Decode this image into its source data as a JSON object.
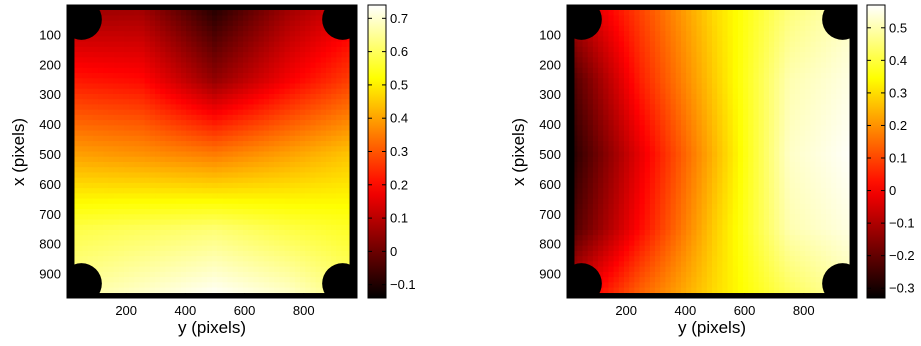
{
  "chart_data": [
    {
      "type": "heatmap",
      "title": "",
      "xlabel": "y (pixels)",
      "ylabel": "x (pixels)",
      "xticks": [
        200,
        400,
        600,
        800
      ],
      "yticks": [
        100,
        200,
        300,
        400,
        500,
        600,
        700,
        800,
        900
      ],
      "xlim": [
        0,
        980
      ],
      "ylim": [
        980,
        0
      ],
      "colormap": "hot",
      "clim": [
        -0.14,
        0.74
      ],
      "colorbar_ticks": [
        -0.1,
        0,
        0.1,
        0.2,
        0.3,
        0.4,
        0.5,
        0.6,
        0.7
      ],
      "colorbar_tick_labels": [
        "−0.1",
        "0",
        "0.1",
        "0.2",
        "0.3",
        "0.4",
        "0.5",
        "0.6",
        "0.7"
      ],
      "mask_color": "#000000",
      "field": {
        "description_values": "approximate sampled values on grid",
        "x": [
          0,
          250,
          500,
          750,
          980
        ],
        "y": [
          0,
          250,
          500,
          750,
          980
        ],
        "z": [
          [
            0.05,
            0.06,
            -0.1,
            0.06,
            0.15
          ],
          [
            0.22,
            0.2,
            0.05,
            0.18,
            0.28
          ],
          [
            0.4,
            0.38,
            0.35,
            0.4,
            0.45
          ],
          [
            0.58,
            0.6,
            0.62,
            0.58,
            0.55
          ],
          [
            0.66,
            0.7,
            0.74,
            0.7,
            0.62
          ]
        ]
      }
    },
    {
      "type": "heatmap",
      "title": "",
      "xlabel": "y (pixels)",
      "ylabel": "x (pixels)",
      "xticks": [
        200,
        400,
        600,
        800
      ],
      "yticks": [
        100,
        200,
        300,
        400,
        500,
        600,
        700,
        800,
        900
      ],
      "xlim": [
        0,
        980
      ],
      "ylim": [
        980,
        0
      ],
      "colormap": "hot",
      "clim": [
        -0.33,
        0.57
      ],
      "colorbar_ticks": [
        -0.3,
        -0.2,
        -0.1,
        0,
        0.1,
        0.2,
        0.3,
        0.4,
        0.5
      ],
      "colorbar_tick_labels": [
        "−0.3",
        "−0.2",
        "−0.1",
        "0",
        "0.1",
        "0.2",
        "0.3",
        "0.4",
        "0.5"
      ],
      "mask_color": "#000000",
      "field": {
        "description_values": "approximate sampled values on grid",
        "x": [
          0,
          250,
          500,
          750,
          980
        ],
        "y": [
          0,
          250,
          500,
          750,
          980
        ],
        "z": [
          [
            -0.1,
            0.1,
            0.3,
            0.45,
            0.52
          ],
          [
            -0.25,
            0.05,
            0.28,
            0.5,
            0.55
          ],
          [
            -0.3,
            -0.02,
            0.25,
            0.52,
            0.57
          ],
          [
            -0.25,
            0.02,
            0.28,
            0.5,
            0.55
          ],
          [
            -0.05,
            0.15,
            0.3,
            0.42,
            0.5
          ]
        ]
      }
    }
  ]
}
